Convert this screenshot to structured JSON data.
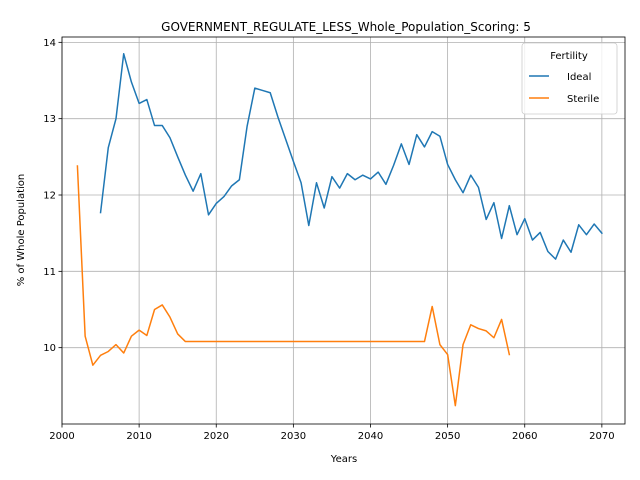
{
  "chart_data": {
    "type": "line",
    "title": "GOVERNMENT_REGULATE_LESS_Whole_Population_Scoring: 5",
    "xlabel": "Years",
    "ylabel": "% of Whole Population",
    "xlim": [
      2000,
      2073
    ],
    "ylim": [
      9.0,
      14.07
    ],
    "xticks": [
      2000,
      2010,
      2020,
      2030,
      2040,
      2050,
      2060,
      2070
    ],
    "yticks": [
      10,
      11,
      12,
      13,
      14
    ],
    "grid": true,
    "legend": {
      "title": "Fertility",
      "placement": "top-right"
    },
    "series": [
      {
        "name": "Ideal",
        "color": "#1f77b4",
        "x": [
          2005,
          2006,
          2007,
          2008,
          2009,
          2010,
          2011,
          2012,
          2013,
          2014,
          2015,
          2016,
          2017,
          2018,
          2019,
          2020,
          2021,
          2022,
          2023,
          2024,
          2025,
          2026,
          2027,
          2028,
          2029,
          2030,
          2031,
          2032,
          2033,
          2034,
          2035,
          2036,
          2037,
          2038,
          2039,
          2040,
          2041,
          2042,
          2043,
          2044,
          2045,
          2046,
          2047,
          2048,
          2049,
          2050,
          2051,
          2052,
          2053,
          2054,
          2055,
          2056,
          2057,
          2058,
          2059,
          2060,
          2061,
          2062,
          2063,
          2064,
          2065,
          2066,
          2067,
          2068,
          2069,
          2070
        ],
        "values": [
          11.77,
          12.62,
          13.0,
          13.85,
          13.48,
          13.2,
          13.25,
          12.91,
          12.91,
          12.75,
          12.5,
          12.26,
          12.05,
          12.28,
          11.74,
          11.89,
          11.98,
          12.12,
          12.2,
          12.9,
          13.4,
          13.37,
          13.34,
          13.02,
          12.73,
          12.44,
          12.16,
          11.6,
          12.16,
          11.83,
          12.24,
          12.09,
          12.28,
          12.2,
          12.26,
          12.21,
          12.3,
          12.14,
          12.39,
          12.67,
          12.4,
          12.79,
          12.63,
          12.83,
          12.77,
          12.4,
          12.2,
          12.03,
          12.26,
          12.1,
          11.68,
          11.9,
          11.43,
          11.86,
          11.48,
          11.69,
          11.41,
          11.51,
          11.26,
          11.16,
          11.41,
          11.25,
          11.61,
          11.48,
          11.62,
          11.5
        ]
      },
      {
        "name": "Sterile",
        "color": "#ff7f0e",
        "x": [
          2002,
          2003,
          2004,
          2005,
          2006,
          2007,
          2008,
          2009,
          2010,
          2011,
          2012,
          2013,
          2014,
          2015,
          2016,
          2017,
          2018,
          2019,
          2020,
          2021,
          2022,
          2023,
          2024,
          2025,
          2026,
          2027,
          2028,
          2029,
          2030,
          2031,
          2032,
          2033,
          2034,
          2035,
          2036,
          2037,
          2038,
          2039,
          2040,
          2041,
          2042,
          2043,
          2044,
          2045,
          2046,
          2047,
          2048,
          2049,
          2050,
          2051,
          2052,
          2053,
          2054,
          2055,
          2056,
          2057,
          2058
        ],
        "values": [
          12.38,
          10.15,
          9.77,
          9.9,
          9.95,
          10.04,
          9.93,
          10.15,
          10.23,
          10.16,
          10.5,
          10.56,
          10.4,
          10.18,
          10.08,
          10.08,
          10.08,
          10.08,
          10.08,
          10.08,
          10.08,
          10.08,
          10.08,
          10.08,
          10.08,
          10.08,
          10.08,
          10.08,
          10.08,
          10.08,
          10.08,
          10.08,
          10.08,
          10.08,
          10.08,
          10.08,
          10.08,
          10.08,
          10.08,
          10.08,
          10.08,
          10.08,
          10.08,
          10.08,
          10.08,
          10.08,
          10.54,
          10.04,
          9.91,
          9.24,
          10.04,
          10.3,
          10.25,
          10.22,
          10.13,
          10.37,
          9.91
        ]
      }
    ]
  }
}
